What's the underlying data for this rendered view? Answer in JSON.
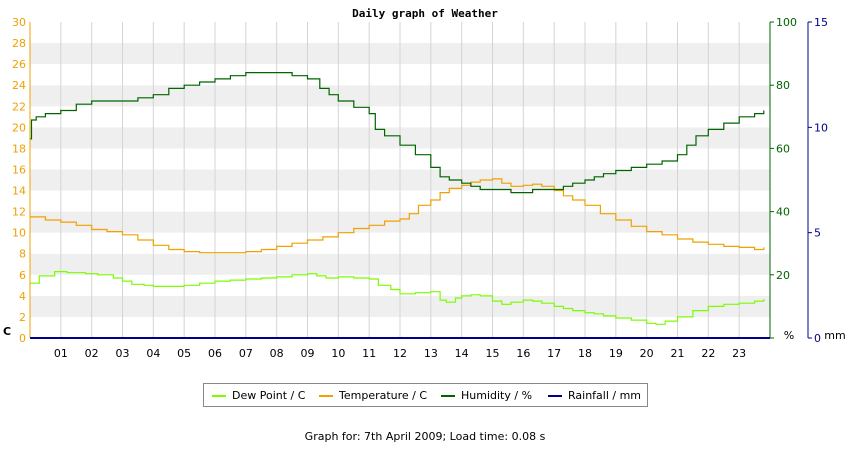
{
  "chart_data": {
    "type": "line",
    "title": "Daily graph of Weather",
    "footer": "Graph for: 7th April 2009; Load time: 0.08 s",
    "x_ticks": [
      "01",
      "02",
      "03",
      "04",
      "05",
      "06",
      "07",
      "08",
      "09",
      "10",
      "11",
      "12",
      "13",
      "14",
      "15",
      "16",
      "17",
      "18",
      "19",
      "20",
      "21",
      "22",
      "23"
    ],
    "xlim": [
      0,
      24
    ],
    "axes": {
      "left": {
        "unit_label": "C",
        "ylim": [
          0,
          30
        ],
        "ticks": [
          0,
          2,
          4,
          6,
          8,
          10,
          12,
          14,
          16,
          18,
          20,
          22,
          24,
          26,
          28,
          30
        ],
        "color": "#f0a000"
      },
      "right1": {
        "unit_label": "%",
        "ylim": [
          0,
          100
        ],
        "ticks": [
          0,
          20,
          40,
          60,
          80,
          100
        ],
        "color": "#006400"
      },
      "right2": {
        "unit_label": "mm",
        "ylim": [
          0,
          15
        ],
        "ticks": [
          0,
          5,
          10,
          15
        ],
        "color": "#00008b"
      }
    },
    "grid": true,
    "legend_position": "bottom",
    "series": [
      {
        "name": "Dew Point / C",
        "axis": "left",
        "color": "#7cfc00",
        "x": [
          0,
          0.3,
          0.8,
          1.2,
          1.8,
          2.2,
          2.7,
          3.0,
          3.3,
          3.7,
          4.0,
          4.5,
          5.0,
          5.5,
          6.0,
          6.5,
          7.0,
          7.5,
          8.0,
          8.5,
          9.0,
          9.3,
          9.6,
          10.0,
          10.5,
          11.0,
          11.3,
          11.7,
          12.0,
          12.5,
          13.0,
          13.3,
          13.5,
          13.8,
          14.0,
          14.3,
          14.6,
          15.0,
          15.3,
          15.6,
          16.0,
          16.3,
          16.6,
          17.0,
          17.3,
          17.6,
          18.0,
          18.3,
          18.6,
          19.0,
          19.5,
          20.0,
          20.3,
          20.6,
          21.0,
          21.5,
          22.0,
          22.5,
          23.0,
          23.5,
          23.8
        ],
        "y": [
          5.2,
          5.9,
          6.3,
          6.2,
          6.1,
          6.0,
          5.7,
          5.4,
          5.1,
          5.0,
          4.9,
          4.9,
          5.0,
          5.2,
          5.4,
          5.5,
          5.6,
          5.7,
          5.8,
          6.0,
          6.1,
          5.9,
          5.7,
          5.8,
          5.7,
          5.6,
          5.0,
          4.6,
          4.2,
          4.3,
          4.4,
          3.6,
          3.4,
          3.8,
          4.0,
          4.1,
          4.0,
          3.5,
          3.2,
          3.4,
          3.6,
          3.5,
          3.3,
          3.0,
          2.8,
          2.6,
          2.4,
          2.3,
          2.1,
          1.9,
          1.7,
          1.4,
          1.3,
          1.6,
          2.0,
          2.6,
          3.0,
          3.2,
          3.3,
          3.5,
          3.7
        ]
      },
      {
        "name": "Temperature / C",
        "axis": "left",
        "color": "#f0a000",
        "x": [
          0,
          0.5,
          1.0,
          1.5,
          2.0,
          2.5,
          3.0,
          3.5,
          4.0,
          4.5,
          5.0,
          5.5,
          6.0,
          6.5,
          7.0,
          7.5,
          8.0,
          8.5,
          9.0,
          9.5,
          10.0,
          10.5,
          11.0,
          11.5,
          12.0,
          12.3,
          12.6,
          13.0,
          13.3,
          13.6,
          14.0,
          14.3,
          14.6,
          15.0,
          15.3,
          15.6,
          16.0,
          16.3,
          16.6,
          17.0,
          17.3,
          17.6,
          18.0,
          18.5,
          19.0,
          19.5,
          20.0,
          20.5,
          21.0,
          21.5,
          22.0,
          22.5,
          23.0,
          23.5,
          23.8
        ],
        "y": [
          11.5,
          11.2,
          11.0,
          10.7,
          10.3,
          10.1,
          9.8,
          9.3,
          8.8,
          8.4,
          8.2,
          8.1,
          8.1,
          8.1,
          8.2,
          8.4,
          8.7,
          9.0,
          9.3,
          9.6,
          10.0,
          10.4,
          10.7,
          11.1,
          11.3,
          11.8,
          12.6,
          13.1,
          13.8,
          14.2,
          14.5,
          14.8,
          15.0,
          15.1,
          14.7,
          14.4,
          14.5,
          14.6,
          14.4,
          14.0,
          13.5,
          13.1,
          12.6,
          11.8,
          11.2,
          10.6,
          10.1,
          9.8,
          9.4,
          9.1,
          8.9,
          8.7,
          8.6,
          8.4,
          8.6
        ]
      },
      {
        "name": "Humidity / %",
        "axis": "right1",
        "color": "#006400",
        "x": [
          0,
          0.05,
          0.2,
          0.5,
          1.0,
          1.5,
          2.0,
          2.5,
          3.0,
          3.5,
          4.0,
          4.5,
          5.0,
          5.5,
          6.0,
          6.5,
          7.0,
          7.5,
          8.0,
          8.5,
          9.0,
          9.4,
          9.7,
          10.0,
          10.5,
          11.0,
          11.2,
          11.5,
          12.0,
          12.5,
          13.0,
          13.3,
          13.6,
          14.0,
          14.3,
          14.6,
          15.0,
          15.3,
          15.6,
          16.0,
          16.3,
          16.6,
          17.0,
          17.3,
          17.6,
          18.0,
          18.3,
          18.6,
          19.0,
          19.5,
          20.0,
          20.5,
          21.0,
          21.3,
          21.6,
          22.0,
          22.5,
          23.0,
          23.5,
          23.8
        ],
        "y": [
          63,
          69,
          70,
          71,
          72,
          74,
          75,
          75,
          75,
          76,
          77,
          79,
          80,
          81,
          82,
          83,
          84,
          84,
          84,
          83,
          82,
          79,
          77,
          75,
          73,
          71,
          66,
          64,
          61,
          58,
          54,
          51,
          50,
          49,
          48,
          47,
          47,
          47,
          46,
          46,
          47,
          47,
          47,
          48,
          49,
          50,
          51,
          52,
          53,
          54,
          55,
          56,
          58,
          61,
          64,
          66,
          68,
          70,
          71,
          72
        ]
      },
      {
        "name": "Rainfall / mm",
        "axis": "right2",
        "color": "#00008b",
        "x": [
          0,
          24
        ],
        "y": [
          0,
          0
        ]
      }
    ]
  }
}
